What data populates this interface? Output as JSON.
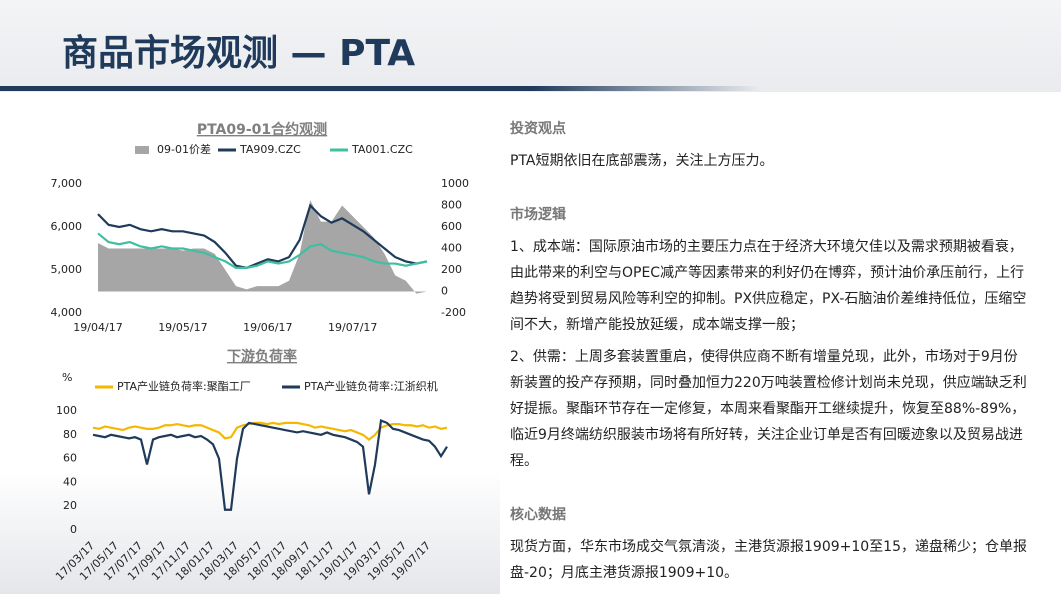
{
  "page": {
    "title": "商品市场观测 — PTA",
    "sections": [
      {
        "heading": "投资观点",
        "paragraphs": [
          "PTA短期依旧在底部震荡，关注上方压力。"
        ]
      },
      {
        "heading": "市场逻辑",
        "paragraphs": [
          "1、成本端：国际原油市场的主要压力点在于经济大环境欠佳以及需求预期被看衰，由此带来的利空与OPEC减产等因素带来的利好仍在博弈，预计油价承压前行，上行趋势将受到贸易风险等利空的抑制。PX供应稳定，PX-石脑油价差维持低位，压缩空间不大，新增产能投放延缓，成本端支撑一般；",
          "2、供需：上周多套装置重启，使得供应商不断有增量兑现，此外，市场对于9月份新装置的投产存预期，同时叠加恒力220万吨装置检修计划尚未兑现，供应端缺乏利好提振。聚酯环节存在一定修复，本周来看聚酯开工继续提升，恢复至88%-89%，临近9月终端纺织服装市场将有所好转，关注企业订单是否有回暖迹象以及贸易战进程。"
        ]
      },
      {
        "heading": "核心数据",
        "paragraphs": [
          "现货方面，华东市场成交气氛清淡，主港货源报1909+10至15，递盘稀少；仓单报盘-20；月底主港货源报1909+10。"
        ]
      }
    ]
  },
  "chart_data": [
    {
      "type": "line",
      "title": "PTA09-01合约观测",
      "categories": [
        "19/04/17",
        null,
        null,
        null,
        null,
        null,
        null,
        null,
        "19/05/17",
        null,
        null,
        null,
        null,
        null,
        null,
        null,
        "19/06/17",
        null,
        null,
        null,
        null,
        null,
        null,
        null,
        "19/07/17",
        null,
        null,
        null,
        null,
        null,
        null,
        null
      ],
      "series": [
        {
          "name": "09-01价差",
          "type": "area",
          "axis": "y2",
          "color": "#a6a6a6",
          "values": [
            450,
            400,
            400,
            400,
            400,
            400,
            400,
            400,
            380,
            400,
            400,
            350,
            200,
            50,
            20,
            50,
            50,
            50,
            100,
            350,
            850,
            650,
            650,
            800,
            700,
            600,
            500,
            350,
            150,
            100,
            -20,
            0
          ]
        },
        {
          "name": "TA909.CZC",
          "type": "line",
          "color": "#1f3a5a",
          "values": [
            6300,
            6050,
            6000,
            6050,
            5950,
            5900,
            5950,
            5900,
            5900,
            5850,
            5800,
            5650,
            5400,
            5100,
            5050,
            5150,
            5250,
            5200,
            5300,
            5700,
            6500,
            6250,
            6100,
            6200,
            6050,
            5900,
            5700,
            5500,
            5300,
            5200,
            5150,
            5200
          ]
        },
        {
          "name": "TA001.CZC",
          "type": "line",
          "color": "#3fbfa0",
          "values": [
            5850,
            5650,
            5600,
            5650,
            5550,
            5500,
            5550,
            5500,
            5500,
            5450,
            5400,
            5300,
            5200,
            5050,
            5050,
            5100,
            5200,
            5150,
            5200,
            5350,
            5550,
            5600,
            5450,
            5400,
            5350,
            5300,
            5200,
            5150,
            5150,
            5100,
            5150,
            5200
          ]
        }
      ],
      "ylim": [
        4000,
        7000
      ],
      "yticks": [
        {
          "value": 4000,
          "label": "4,000"
        },
        {
          "value": 5000,
          "label": "5,000"
        },
        {
          "value": 6000,
          "label": "6,000"
        },
        {
          "value": 7000,
          "label": "7,000"
        }
      ],
      "y2lim": [
        -200,
        1000
      ],
      "y2ticks": [
        -200,
        0,
        200,
        400,
        600,
        800,
        1000
      ],
      "grid": false,
      "legend": "top"
    },
    {
      "type": "line",
      "title": "下游负荷率",
      "y_label": "%",
      "categories": [
        "17/03/17",
        null,
        null,
        null,
        "17/05/17",
        null,
        null,
        null,
        "17/07/17",
        null,
        null,
        null,
        "17/09/17",
        null,
        null,
        null,
        "17/11/17",
        null,
        null,
        null,
        "18/01/17",
        null,
        null,
        null,
        "18/03/17",
        null,
        null,
        null,
        "18/05/17",
        null,
        null,
        null,
        "18/07/17",
        null,
        null,
        null,
        "18/09/17",
        null,
        null,
        null,
        "18/11/17",
        null,
        null,
        null,
        "19/01/17",
        null,
        null,
        null,
        "19/03/17",
        null,
        null,
        null,
        "19/05/17",
        null,
        null,
        null,
        "19/07/17",
        null,
        null,
        null
      ],
      "series": [
        {
          "name": "PTA产业链负荷率:聚酯工厂",
          "type": "line",
          "color": "#f5b800",
          "values": [
            86,
            85,
            87,
            86,
            85,
            84,
            86,
            87,
            86,
            85,
            85,
            86,
            88,
            88,
            89,
            88,
            87,
            88,
            88,
            86,
            84,
            82,
            77,
            78,
            86,
            88,
            89,
            90,
            90,
            89,
            90,
            89,
            90,
            90,
            90,
            89,
            88,
            86,
            87,
            86,
            85,
            84,
            83,
            84,
            82,
            80,
            76,
            80,
            86,
            88,
            89,
            89,
            88,
            88,
            87,
            88,
            86,
            87,
            85,
            86
          ]
        },
        {
          "name": "PTA产业链负荷率:江浙织机",
          "type": "line",
          "color": "#1f3a5a",
          "values": [
            80,
            79,
            78,
            80,
            79,
            78,
            77,
            78,
            76,
            55,
            76,
            78,
            79,
            80,
            78,
            79,
            80,
            78,
            79,
            76,
            72,
            60,
            17,
            17,
            60,
            85,
            90,
            89,
            88,
            87,
            86,
            85,
            84,
            83,
            82,
            83,
            82,
            81,
            80,
            82,
            80,
            79,
            78,
            76,
            74,
            70,
            30,
            55,
            92,
            90,
            85,
            84,
            82,
            80,
            78,
            76,
            75,
            70,
            62,
            70
          ]
        }
      ],
      "ylim": [
        0,
        100
      ],
      "yticks": [
        0,
        20,
        40,
        60,
        80,
        100
      ],
      "grid": false,
      "legend": "top"
    }
  ]
}
